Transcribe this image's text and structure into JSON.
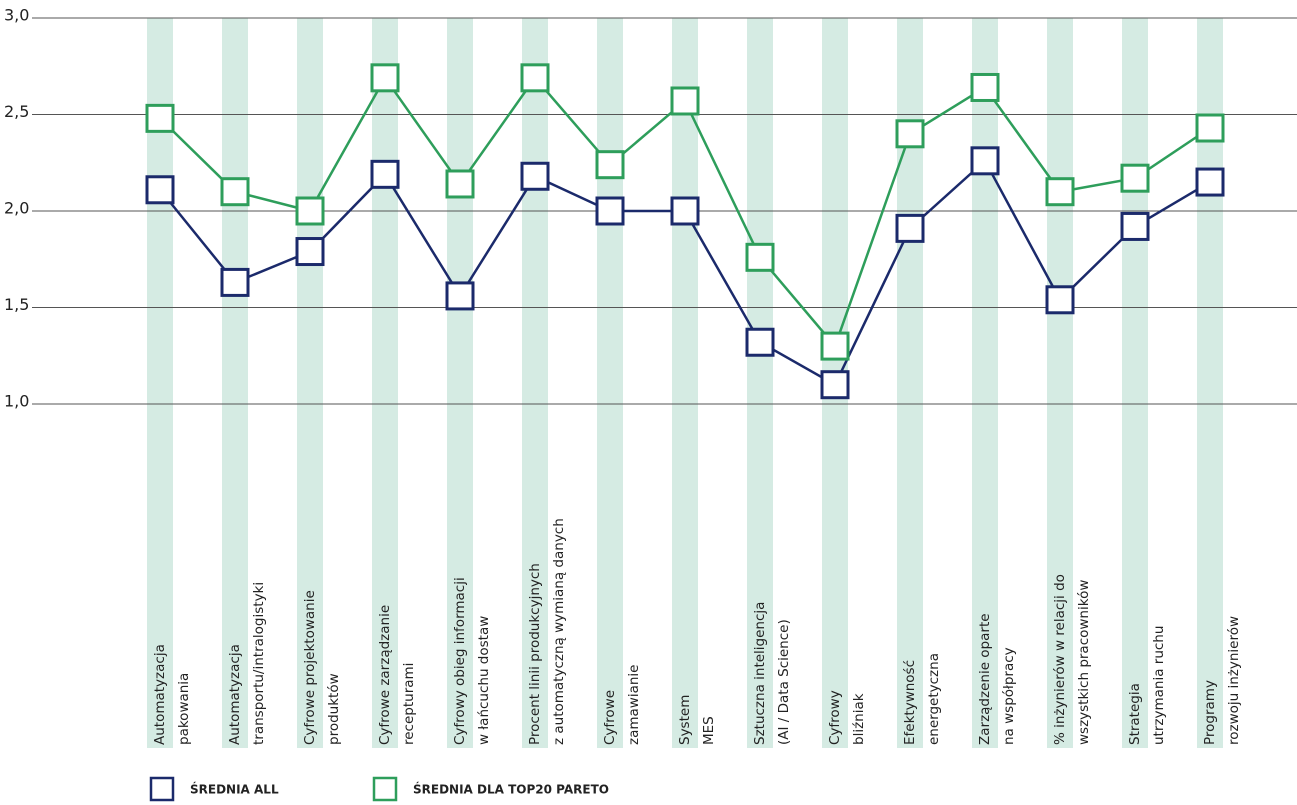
{
  "chart_data": {
    "type": "line",
    "categories": [
      [
        "Automatyzacja",
        "pakowania"
      ],
      [
        "Automatyzacja",
        "transportu/intralogistyki"
      ],
      [
        "Cyfrowe projektowanie",
        "produktów"
      ],
      [
        "Cyfrowe zarządzanie",
        "recepturami"
      ],
      [
        "Cyfrowy obieg informacji",
        "w łańcuchu dostaw"
      ],
      [
        "Procent linii produkcyjnych",
        "z automatyczną wymianą danych"
      ],
      [
        "Cyfrowe",
        "zamawianie"
      ],
      [
        "System",
        "MES"
      ],
      [
        "Sztuczna inteligencja",
        "(AI / Data Science)"
      ],
      [
        "Cyfrowy",
        "bliźniak"
      ],
      [
        "Efektywność",
        "energetyczna"
      ],
      [
        "Zarządzenie oparte",
        "na współpracy"
      ],
      [
        "% inżynierów w relacji do",
        "wszystkich pracowników"
      ],
      [
        "Strategia",
        "utrzymania ruchu"
      ],
      [
        "Programy",
        "rozwoju inżynierów"
      ]
    ],
    "series": [
      {
        "name": "ŚREDNIA ALL",
        "color": "#1b2a6b",
        "values": [
          2.11,
          1.63,
          1.79,
          2.19,
          1.56,
          2.18,
          2.0,
          2.0,
          1.32,
          1.1,
          1.91,
          2.26,
          1.54,
          1.92,
          2.15
        ]
      },
      {
        "name": "ŚREDNIA DLA TOP20 PARETO",
        "color": "#2e9e5b",
        "values": [
          2.48,
          2.1,
          2.0,
          2.69,
          2.14,
          2.69,
          2.24,
          2.57,
          1.76,
          1.3,
          2.4,
          2.64,
          2.1,
          2.17,
          2.43
        ]
      }
    ],
    "ylim": [
      1.0,
      3.0
    ],
    "yticks": [
      {
        "value": 1.0,
        "label": "1,0"
      },
      {
        "value": 1.5,
        "label": "1,5"
      },
      {
        "value": 2.0,
        "label": "2,0"
      },
      {
        "value": 2.5,
        "label": "2,5"
      },
      {
        "value": 3.0,
        "label": "3,0"
      }
    ],
    "grid": true,
    "band_color": "#d5ebe3"
  }
}
